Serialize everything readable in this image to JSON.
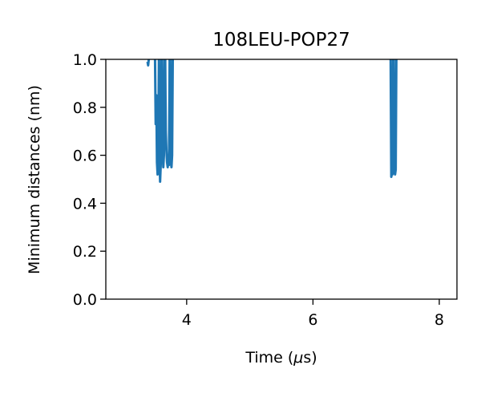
{
  "chart_data": {
    "type": "line",
    "title": "108LEU-POP27",
    "xlabel_prefix": "Time (",
    "xlabel_mu": "μ",
    "xlabel_suffix": "s)",
    "ylabel": "Minimum distances (nm)",
    "xlim": [
      2.72,
      8.28
    ],
    "ylim": [
      0.0,
      1.0
    ],
    "xticks": [
      4,
      6,
      8
    ],
    "xtick_labels": [
      "4",
      "6",
      "8"
    ],
    "yticks": [
      0.0,
      0.2,
      0.4,
      0.6,
      0.8,
      1.0
    ],
    "ytick_labels": [
      "0.0",
      "0.2",
      "0.4",
      "0.6",
      "0.8",
      "1.0"
    ],
    "grid": false,
    "legend": "none",
    "series": [
      {
        "color": "#1f77b4",
        "segments": [
          {
            "x": [
              3.38,
              3.39,
              3.4
            ],
            "y": [
              0.99,
              0.975,
              1.0
            ]
          },
          {
            "x": [
              3.5,
              3.51,
              3.52,
              3.53,
              3.54,
              3.55,
              3.56,
              3.57,
              3.58,
              3.59,
              3.6,
              3.61,
              3.62,
              3.63,
              3.64,
              3.65,
              3.66,
              3.67,
              3.68,
              3.69,
              3.7,
              3.71,
              3.72,
              3.73,
              3.74,
              3.75,
              3.76,
              3.77,
              3.78
            ],
            "y": [
              1.0,
              0.73,
              0.85,
              0.57,
              0.52,
              0.55,
              1.0,
              0.6,
              0.49,
              0.56,
              1.0,
              1.0,
              0.62,
              0.55,
              0.6,
              1.0,
              1.0,
              0.7,
              0.62,
              0.57,
              0.55,
              0.6,
              0.56,
              1.0,
              1.0,
              0.58,
              0.55,
              0.6,
              1.0
            ]
          },
          {
            "x": [
              7.23,
              7.24,
              7.25,
              7.26,
              7.27,
              7.28,
              7.29,
              7.3,
              7.31,
              7.32,
              7.33
            ],
            "y": [
              1.0,
              0.51,
              0.53,
              0.52,
              1.0,
              1.0,
              0.53,
              0.52,
              0.54,
              1.0,
              1.0
            ]
          }
        ]
      }
    ]
  }
}
